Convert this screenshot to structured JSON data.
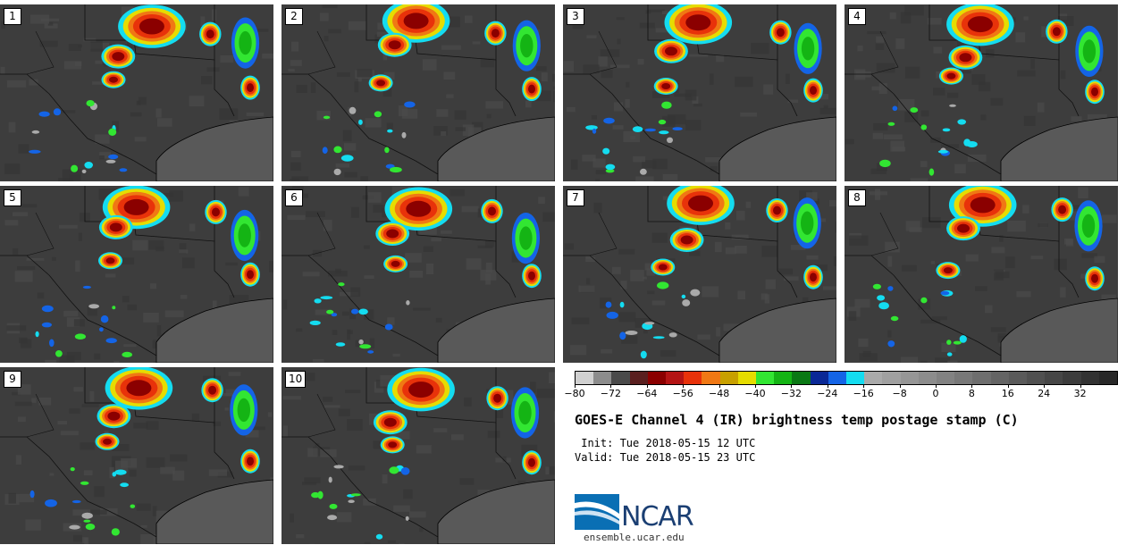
{
  "panels": [
    {
      "label": "1"
    },
    {
      "label": "2"
    },
    {
      "label": "3"
    },
    {
      "label": "4"
    },
    {
      "label": "5"
    },
    {
      "label": "6"
    },
    {
      "label": "7"
    },
    {
      "label": "8"
    },
    {
      "label": "9"
    },
    {
      "label": "10"
    }
  ],
  "colorbar": {
    "colors": [
      "#d0d0d0",
      "#8c8c8c",
      "#4a4a4a",
      "#5a1f1f",
      "#8b0000",
      "#b41414",
      "#e8320a",
      "#f07814",
      "#c8a000",
      "#e6dc00",
      "#32e632",
      "#14b414",
      "#0a7814",
      "#0a2896",
      "#1464e6",
      "#14dcf0",
      "#aaaaaa",
      "#a0a0a0",
      "#969696",
      "#8c8c8c",
      "#828282",
      "#787878",
      "#6e6e6e",
      "#646464",
      "#5a5a5a",
      "#505050",
      "#464646",
      "#3c3c3c",
      "#323232",
      "#282828"
    ],
    "ticks": [
      "−80",
      "−72",
      "−64",
      "−56",
      "−48",
      "−40",
      "−32",
      "−24",
      "−16",
      "−8",
      "0",
      "8",
      "16",
      "24",
      "32"
    ]
  },
  "title": "GOES-E Channel 4 (IR) brightness temp postage stamp (C)",
  "init_line": " Init: Tue 2018-05-15 12 UTC",
  "valid_line": "Valid: Tue 2018-05-15 23 UTC",
  "logo_text": "NCAR",
  "url": "ensemble.ucar.edu"
}
